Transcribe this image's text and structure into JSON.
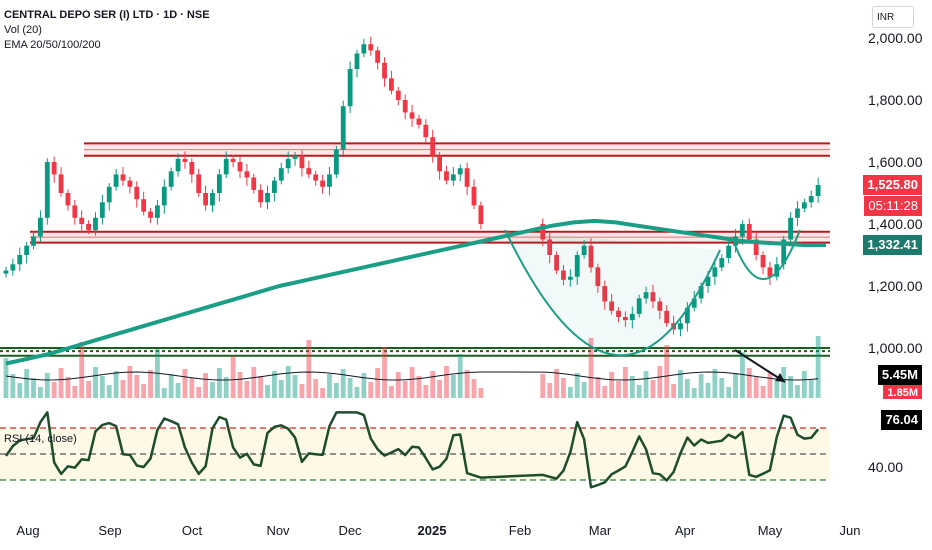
{
  "chart_data": {
    "type": "candlestick",
    "symbol_title": "CENTRAL DEPO SER (I) LTD · 1D · NSE",
    "indicators": [
      "Vol (20)",
      "EMA 20/50/100/200"
    ],
    "rsi_label": "RSI (14, close)",
    "currency_button": "INR",
    "price_axis": {
      "ticks": [
        "2,000.00",
        "1,800.00",
        "1,600.00",
        "1,400.00",
        "1,200.00",
        "1,000.00"
      ],
      "ylim": [
        950,
        2050
      ]
    },
    "rsi_axis": {
      "ticks": [
        "40.00"
      ],
      "ylim": [
        20,
        85
      ],
      "levels": [
        70,
        50,
        30
      ]
    },
    "time_axis": {
      "ticks": [
        "Aug",
        "Sep",
        "Oct",
        "Nov",
        "Dec",
        "2025",
        "Feb",
        "Mar",
        "Apr",
        "May",
        "Jun"
      ]
    },
    "price_tags": {
      "last": "1,525.80",
      "countdown": "05:11:28",
      "ema": "1,332.41",
      "volume": "5.45M",
      "volume_ma": "1.85M",
      "rsi": "76.04"
    },
    "resistance_zones": [
      [
        1620,
        1660
      ],
      [
        1340,
        1375
      ]
    ],
    "support_lines": [
      1000,
      990,
      975
    ],
    "closes_approx": [
      1250,
      1270,
      1300,
      1330,
      1360,
      1420,
      1600,
      1560,
      1500,
      1460,
      1420,
      1400,
      1380,
      1420,
      1470,
      1520,
      1560,
      1540,
      1520,
      1480,
      1440,
      1420,
      1460,
      1520,
      1570,
      1610,
      1600,
      1560,
      1500,
      1460,
      1500,
      1560,
      1610,
      1600,
      1570,
      1550,
      1510,
      1470,
      1500,
      1540,
      1580,
      1610,
      1620,
      1580,
      1560,
      1540,
      1520,
      1560,
      1640,
      1780,
      1900,
      1950,
      1980,
      1960,
      1920,
      1870,
      1830,
      1800,
      1760,
      1740,
      1720,
      1680,
      1620,
      1570,
      1540,
      1560,
      1580,
      1520,
      1460,
      1400,
      1350,
      1300,
      1250,
      1220,
      1230,
      1300,
      1330,
      1260,
      1200,
      1150,
      1120,
      1100,
      1090,
      1110,
      1160,
      1180,
      1150,
      1120,
      1080,
      1060,
      1080,
      1130,
      1160,
      1200,
      1230,
      1260,
      1290,
      1330,
      1360,
      1400,
      1350,
      1300,
      1260,
      1230,
      1270,
      1350,
      1420,
      1450,
      1470,
      1490,
      1525.8
    ],
    "ema_approx": [
      950,
      965,
      980,
      1000,
      1020,
      1040,
      1060,
      1080,
      1100,
      1120,
      1140,
      1160,
      1180,
      1200,
      1215,
      1230,
      1245,
      1260,
      1275,
      1290,
      1305,
      1320,
      1335,
      1350,
      1365,
      1380,
      1395,
      1405,
      1410,
      1405,
      1395,
      1385,
      1375,
      1365,
      1355,
      1345,
      1340,
      1336,
      1332,
      1332.41
    ]
  }
}
